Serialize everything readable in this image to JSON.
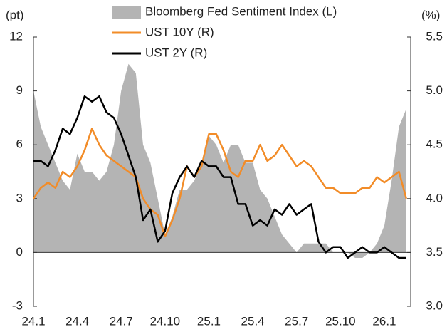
{
  "chart_data": {
    "type": "line",
    "y_label": "(pt)",
    "y2_label": "(%)",
    "categories": [
      "24.1",
      null,
      null,
      null,
      null,
      null,
      "24.4",
      null,
      null,
      null,
      null,
      null,
      "24.7",
      null,
      null,
      null,
      null,
      null,
      "24.10",
      null,
      null,
      null,
      null,
      null,
      "25.1",
      null,
      null,
      null,
      null,
      null,
      "25.4",
      null,
      null,
      null,
      null,
      null,
      "25.7",
      null,
      null,
      null,
      null,
      null,
      "25.10",
      null,
      null,
      null,
      null,
      null,
      "26.1",
      null,
      null,
      null
    ],
    "series": [
      {
        "name": "Bloomberg Fed Sentiment Index (L)",
        "type": "area",
        "color": "#b4b4b4",
        "values": [
          9,
          7,
          6,
          5,
          4,
          3.5,
          5.5,
          4.5,
          4.5,
          4,
          4.5,
          6,
          9,
          10.5,
          10,
          6,
          5,
          3,
          1,
          2,
          3.5,
          3.5,
          4,
          5,
          6.5,
          6,
          5,
          6,
          6,
          5,
          5,
          3.5,
          3,
          2,
          1,
          0.5,
          0,
          0.5,
          0.5,
          0.5,
          0.5,
          0,
          0,
          0,
          -0.3,
          -0.3,
          0,
          0.5,
          1.5,
          4,
          7,
          8
        ]
      },
      {
        "name": "UST 10Y (R)",
        "axis": "y2",
        "color": "#f28c28",
        "values": [
          4.0,
          4.1,
          4.15,
          4.1,
          4.25,
          4.2,
          4.3,
          4.45,
          4.65,
          4.5,
          4.4,
          4.35,
          4.3,
          4.25,
          4.2,
          4.0,
          3.9,
          3.85,
          3.65,
          3.8,
          4.0,
          4.3,
          4.2,
          4.3,
          4.6,
          4.6,
          4.45,
          4.25,
          4.2,
          4.35,
          4.35,
          4.5,
          4.35,
          4.4,
          4.5,
          4.4,
          4.3,
          4.35,
          4.3,
          4.2,
          4.1,
          4.1,
          4.05,
          4.05,
          4.05,
          4.1,
          4.1,
          4.2,
          4.15,
          4.2,
          4.25,
          4.0
        ]
      },
      {
        "name": "UST 2Y (R)",
        "axis": "y2",
        "color": "#000000",
        "values": [
          4.35,
          4.35,
          4.3,
          4.45,
          4.65,
          4.6,
          4.75,
          4.95,
          4.9,
          4.95,
          4.8,
          4.75,
          4.6,
          4.4,
          4.2,
          3.8,
          3.9,
          3.6,
          3.7,
          4.05,
          4.2,
          4.3,
          4.2,
          4.35,
          4.3,
          4.3,
          4.2,
          4.2,
          3.95,
          3.95,
          3.75,
          3.8,
          3.75,
          3.9,
          3.85,
          3.95,
          3.85,
          3.9,
          3.95,
          3.6,
          3.5,
          3.55,
          3.55,
          3.45,
          3.5,
          3.55,
          3.5,
          3.5,
          3.55,
          3.5,
          3.45,
          3.45
        ]
      }
    ],
    "ylim": [
      -3,
      12
    ],
    "yticks": [
      -3,
      0,
      3,
      6,
      9,
      12
    ],
    "y2lim": [
      3,
      5.5
    ],
    "y2ticks": [
      {
        "value": 3,
        "label": "3.0"
      },
      3.5,
      {
        "value": 4,
        "label": "4.0"
      },
      4.5,
      {
        "value": 5,
        "label": "5.0"
      },
      5.5
    ]
  }
}
